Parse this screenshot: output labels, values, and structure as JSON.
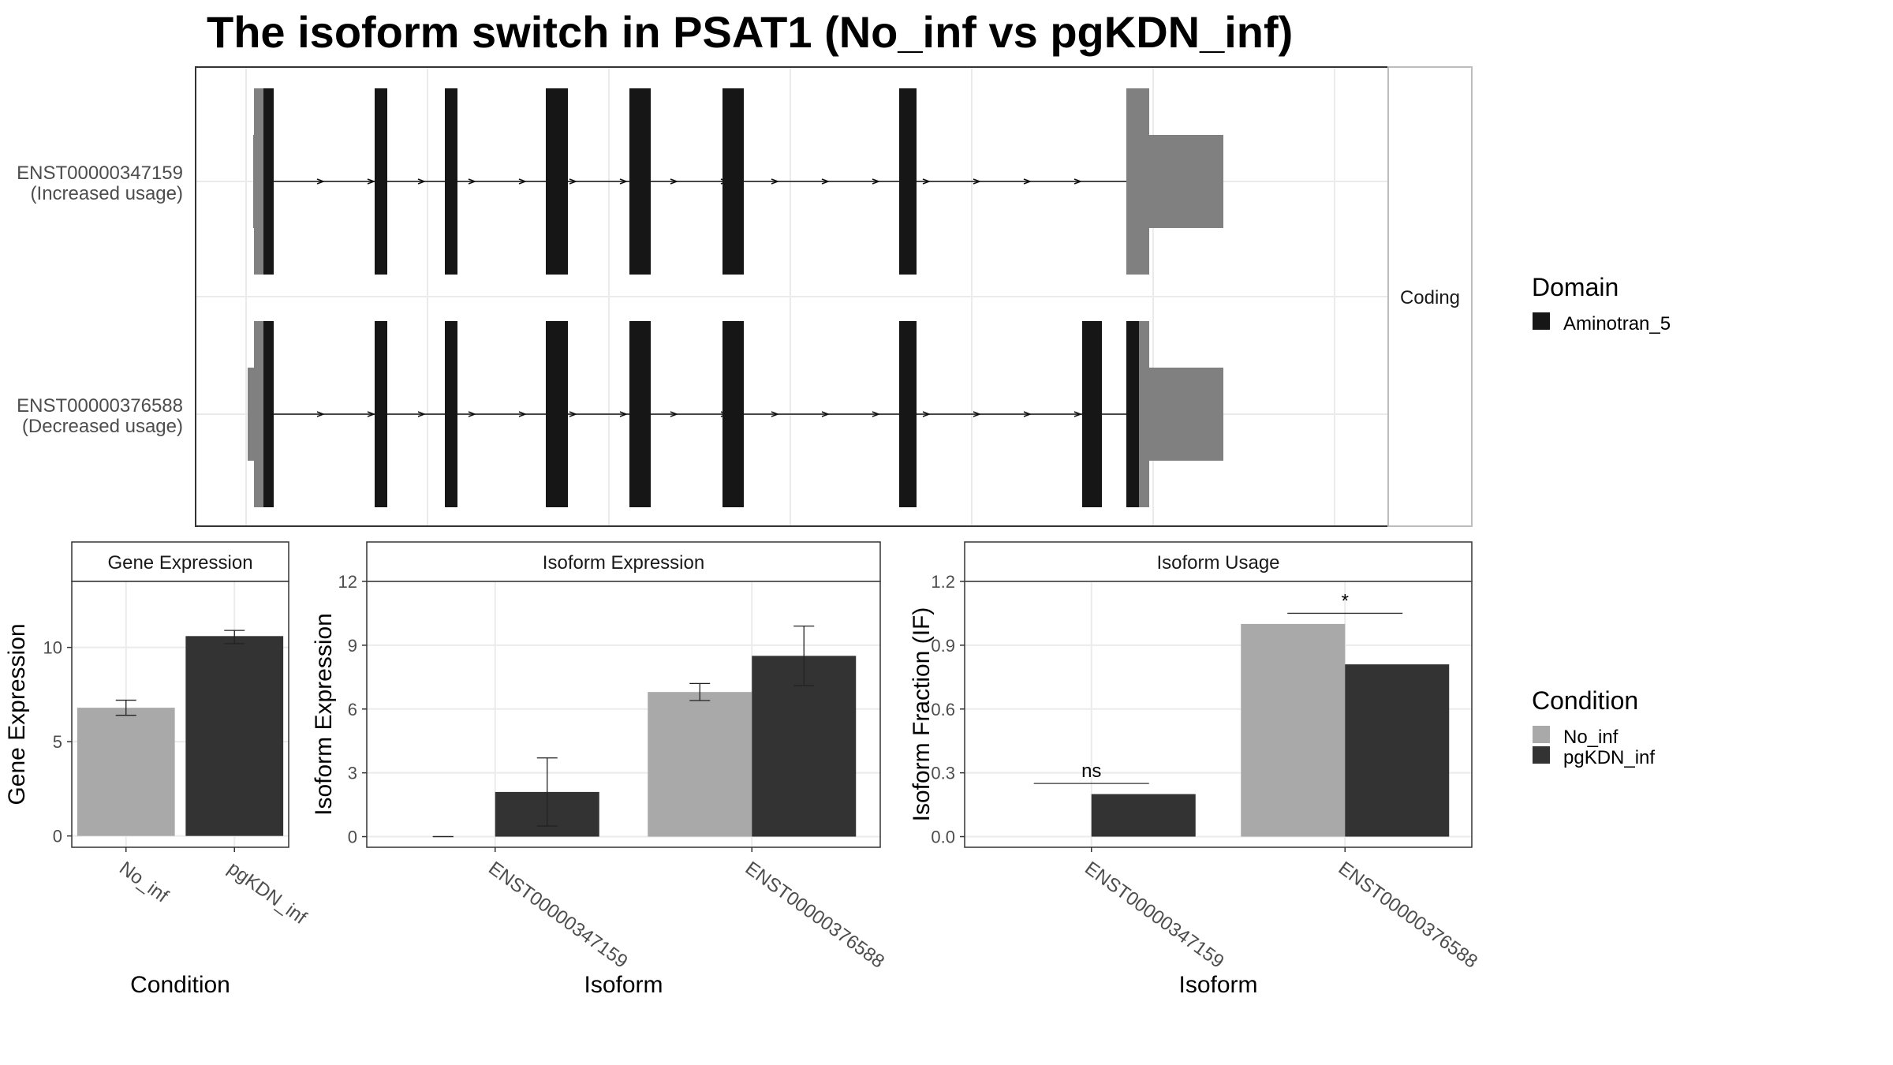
{
  "title": "The isoform switch in PSAT1 (No_inf vs pgKDN_inf)",
  "colors": {
    "no_inf": "#a9a9a9",
    "pgkdn_inf": "#333333",
    "utr": "#808080",
    "domain": "#161616",
    "grid": "#ebebeb",
    "panel_border": "#333333",
    "strip_fill": "#ffffff"
  },
  "structure": {
    "strip_label": "Coding",
    "coord_range": [
      0,
      1000
    ],
    "transcripts": [
      {
        "id": "ENST00000347159",
        "usage": "(Increased usage)",
        "utr_5": [
          [
            7,
            20
          ]
        ],
        "cds": [
          [
            20,
            33
          ],
          [
            161,
            177
          ],
          [
            250,
            266
          ],
          [
            378,
            406
          ],
          [
            484,
            511
          ],
          [
            602,
            629
          ],
          [
            826,
            848
          ]
        ],
        "utr_3": [
          [
            1114,
            1143
          ],
          [
            1143,
            1237
          ]
        ],
        "intron": [
          33,
          1114
        ]
      },
      {
        "id": "ENST00000376588",
        "usage": "(Decreased usage)",
        "utr_5": [
          [
            0,
            20
          ]
        ],
        "cds": [
          [
            20,
            33
          ],
          [
            161,
            177
          ],
          [
            250,
            266
          ],
          [
            378,
            406
          ],
          [
            484,
            511
          ],
          [
            602,
            629
          ],
          [
            826,
            848
          ],
          [
            1058,
            1083
          ],
          [
            1114,
            1130
          ]
        ],
        "utr_3": [
          [
            1130,
            1143
          ],
          [
            1143,
            1237
          ]
        ],
        "intron": [
          33,
          1114
        ]
      }
    ],
    "legend": {
      "title": "Domain",
      "items": [
        {
          "label": "Aminotran_5",
          "color": "#161616"
        }
      ]
    }
  },
  "chart_data": [
    {
      "type": "bar",
      "title": "Gene Expression",
      "xlabel": "Condition",
      "ylabel": "Gene Expression",
      "categories": [
        "No_inf",
        "pgKDN_inf"
      ],
      "series": [
        {
          "values": [
            6.8,
            10.6
          ],
          "errors": [
            [
              6.4,
              7.2
            ],
            [
              10.2,
              10.9
            ]
          ]
        }
      ],
      "ylim": [
        -0.6,
        13.5
      ],
      "yticks": [
        0,
        5,
        10
      ],
      "grid": true
    },
    {
      "type": "bar",
      "title": "Isoform Expression",
      "xlabel": "Isoform",
      "ylabel": "Isoform Expression",
      "categories": [
        "ENST00000347159",
        "ENST00000376588"
      ],
      "series": [
        {
          "name": "No_inf",
          "values": [
            0.0,
            6.8
          ],
          "errors": [
            [
              0.0,
              0.0
            ],
            [
              6.4,
              7.2
            ]
          ]
        },
        {
          "name": "pgKDN_inf",
          "values": [
            2.1,
            8.5
          ],
          "errors": [
            [
              0.5,
              3.7
            ],
            [
              7.1,
              9.9
            ]
          ]
        }
      ],
      "ylim": [
        -0.5,
        12
      ],
      "yticks": [
        0,
        3,
        6,
        9,
        12
      ],
      "grid": true
    },
    {
      "type": "bar",
      "title": "Isoform Usage",
      "xlabel": "Isoform",
      "ylabel": "Isoform Fraction (IF)",
      "categories": [
        "ENST00000347159",
        "ENST00000376588"
      ],
      "series": [
        {
          "name": "No_inf",
          "values": [
            0.0,
            1.0
          ]
        },
        {
          "name": "pgKDN_inf",
          "values": [
            0.2,
            0.81
          ]
        }
      ],
      "significance": [
        {
          "label": "ns",
          "y": 0.25
        },
        {
          "label": "*",
          "y": 1.05
        }
      ],
      "ylim": [
        -0.05,
        1.2
      ],
      "yticks": [
        "0.0",
        "0.3",
        "0.6",
        "0.9",
        "1.2"
      ],
      "grid": true
    }
  ],
  "condition_legend": {
    "title": "Condition",
    "items": [
      {
        "label": "No_inf",
        "color": "#a9a9a9"
      },
      {
        "label": "pgKDN_inf",
        "color": "#333333"
      }
    ]
  }
}
